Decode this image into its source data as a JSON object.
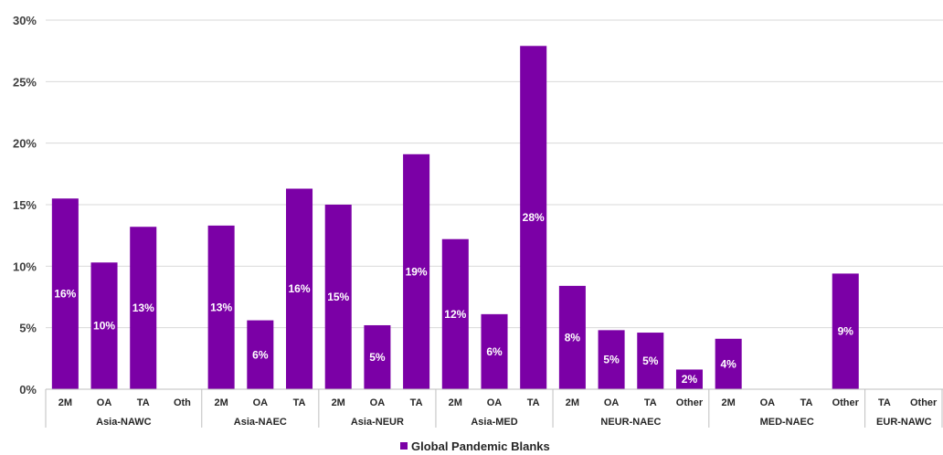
{
  "chart_data": {
    "type": "bar",
    "colors": {
      "bar": "#7B00A6",
      "grid": "#d9d9d9",
      "axis": "#bfbfbf"
    },
    "ylim": [
      0,
      30
    ],
    "y_ticks": [
      "0%",
      "5%",
      "10%",
      "15%",
      "20%",
      "25%",
      "30%"
    ],
    "y_tick_values": [
      0,
      5,
      10,
      15,
      20,
      25,
      30
    ],
    "grid": true,
    "legend_position": "bottom",
    "series": [
      {
        "name": "Global Pandemic Blanks"
      }
    ],
    "categories": [
      {
        "group": "Asia-NAWC",
        "label": "2M",
        "value": 15.5,
        "data_label": "16%"
      },
      {
        "group": "Asia-NAWC",
        "label": "OA",
        "value": 10.3,
        "data_label": "10%"
      },
      {
        "group": "Asia-NAWC",
        "label": "TA",
        "value": 13.2,
        "data_label": "13%"
      },
      {
        "group": "Asia-NAWC",
        "label": "Oth",
        "value": null,
        "data_label": ""
      },
      {
        "group": "Asia-NAEC",
        "label": "2M",
        "value": 13.3,
        "data_label": "13%"
      },
      {
        "group": "Asia-NAEC",
        "label": "OA",
        "value": 5.6,
        "data_label": "6%"
      },
      {
        "group": "Asia-NAEC",
        "label": "TA",
        "value": 16.3,
        "data_label": "16%"
      },
      {
        "group": "Asia-NEUR",
        "label": "2M",
        "value": 15.0,
        "data_label": "15%"
      },
      {
        "group": "Asia-NEUR",
        "label": "OA",
        "value": 5.2,
        "data_label": "5%"
      },
      {
        "group": "Asia-NEUR",
        "label": "TA",
        "value": 19.1,
        "data_label": "19%"
      },
      {
        "group": "Asia-MED",
        "label": "2M",
        "value": 12.2,
        "data_label": "12%"
      },
      {
        "group": "Asia-MED",
        "label": "OA",
        "value": 6.1,
        "data_label": "6%"
      },
      {
        "group": "Asia-MED",
        "label": "TA",
        "value": 27.9,
        "data_label": "28%"
      },
      {
        "group": "NEUR-NAEC",
        "label": "2M",
        "value": 8.4,
        "data_label": "8%"
      },
      {
        "group": "NEUR-NAEC",
        "label": "OA",
        "value": 4.8,
        "data_label": "5%"
      },
      {
        "group": "NEUR-NAEC",
        "label": "TA",
        "value": 4.6,
        "data_label": "5%"
      },
      {
        "group": "NEUR-NAEC",
        "label": "Other",
        "value": 1.6,
        "data_label": "2%"
      },
      {
        "group": "MED-NAEC",
        "label": "2M",
        "value": 4.1,
        "data_label": "4%"
      },
      {
        "group": "MED-NAEC",
        "label": "OA",
        "value": null,
        "data_label": ""
      },
      {
        "group": "MED-NAEC",
        "label": "TA",
        "value": null,
        "data_label": ""
      },
      {
        "group": "MED-NAEC",
        "label": "Other",
        "value": 9.4,
        "data_label": "9%"
      },
      {
        "group": "EUR-NAWC",
        "label": "TA",
        "value": null,
        "data_label": ""
      },
      {
        "group": "EUR-NAWC",
        "label": "Other",
        "value": null,
        "data_label": ""
      }
    ],
    "groups": [
      "Asia-NAWC",
      "Asia-NAEC",
      "Asia-NEUR",
      "Asia-MED",
      "NEUR-NAEC",
      "MED-NAEC",
      "EUR-NAWC"
    ]
  }
}
